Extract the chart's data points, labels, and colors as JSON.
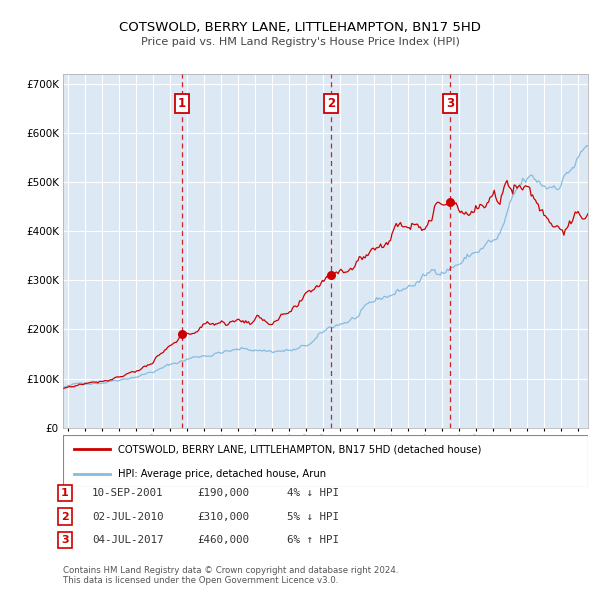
{
  "title": "COTSWOLD, BERRY LANE, LITTLEHAMPTON, BN17 5HD",
  "subtitle": "Price paid vs. HM Land Registry's House Price Index (HPI)",
  "bg_color": "#dce9f5",
  "grid_color": "#ffffff",
  "red_line_color": "#cc0000",
  "blue_line_color": "#88bbdd",
  "ylim": [
    0,
    720000
  ],
  "yticks": [
    0,
    100000,
    200000,
    300000,
    400000,
    500000,
    600000,
    700000
  ],
  "ytick_labels": [
    "£0",
    "£100K",
    "£200K",
    "£300K",
    "£400K",
    "£500K",
    "£600K",
    "£700K"
  ],
  "sale_prices": [
    190000,
    310000,
    460000
  ],
  "sale_labels": [
    "1",
    "2",
    "3"
  ],
  "sale_date_strs": [
    "10-SEP-2001",
    "02-JUL-2010",
    "04-JUL-2017"
  ],
  "sale_price_strs": [
    "£190,000",
    "£310,000",
    "£460,000"
  ],
  "sale_hpi_diffs": [
    "4% ↓ HPI",
    "5% ↓ HPI",
    "6% ↑ HPI"
  ],
  "legend_red": "COTSWOLD, BERRY LANE, LITTLEHAMPTON, BN17 5HD (detached house)",
  "legend_blue": "HPI: Average price, detached house, Arun",
  "footer": "Contains HM Land Registry data © Crown copyright and database right 2024.\nThis data is licensed under the Open Government Licence v3.0.",
  "xlim_start": 1994.7,
  "xlim_end": 2025.6
}
